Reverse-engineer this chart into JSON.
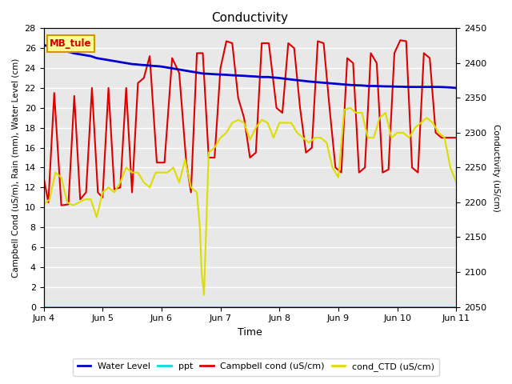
{
  "title": "Conductivity",
  "xlabel": "Time",
  "ylabel_left": "Campbell Cond (uS/m), Rain (mm), Water Level (cm)",
  "ylabel_right": "Conductivity (uS/cm)",
  "ylim_left": [
    0,
    28
  ],
  "ylim_right": [
    2050,
    2450
  ],
  "bg_color": "#e8e8e8",
  "site_label": "MB_tule",
  "x_ticks_labels": [
    "Jun 4",
    "Jun 5",
    "Jun 6",
    "Jun 7",
    "Jun 8",
    "Jun 9",
    "Jun 10",
    "Jun 11"
  ],
  "water_level": {
    "label": "Water Level",
    "color": "#0000cc",
    "lw": 2.0,
    "x": [
      0.0,
      0.05,
      0.1,
      0.15,
      0.2,
      0.25,
      0.3,
      0.35,
      0.4,
      0.45,
      0.5,
      0.55,
      0.6,
      0.65,
      0.7,
      0.75,
      0.8,
      0.85,
      0.9,
      0.95,
      1.0,
      1.05,
      1.1,
      1.15,
      1.2,
      1.25,
      1.3,
      1.35,
      1.4,
      1.45,
      1.5,
      1.55,
      1.6,
      1.65,
      1.7,
      1.75,
      1.8,
      1.85,
      1.9,
      1.95,
      2.0,
      2.1,
      2.2,
      2.3,
      2.4,
      2.5,
      2.6,
      2.7,
      2.8,
      2.9,
      3.0,
      3.1,
      3.2,
      3.3,
      3.4,
      3.5,
      3.6,
      3.7,
      3.8,
      3.9,
      4.0,
      4.1,
      4.2,
      4.3,
      4.4,
      4.5,
      4.6,
      4.7,
      4.8,
      4.9,
      5.0,
      5.1,
      5.2,
      5.3,
      5.4,
      5.5,
      5.6,
      5.7,
      5.8,
      5.9,
      6.0,
      6.1,
      6.2,
      6.3,
      6.4,
      6.5,
      6.6,
      6.7,
      6.8,
      6.9,
      7.0
    ],
    "y": [
      26.3,
      26.25,
      26.2,
      26.1,
      26.0,
      25.9,
      25.8,
      25.7,
      25.65,
      25.6,
      25.5,
      25.45,
      25.4,
      25.35,
      25.3,
      25.25,
      25.2,
      25.1,
      25.0,
      24.95,
      24.9,
      24.85,
      24.8,
      24.75,
      24.7,
      24.65,
      24.6,
      24.55,
      24.5,
      24.45,
      24.4,
      24.38,
      24.35,
      24.32,
      24.3,
      24.28,
      24.25,
      24.22,
      24.2,
      24.18,
      24.15,
      24.05,
      23.95,
      23.85,
      23.75,
      23.65,
      23.55,
      23.45,
      23.42,
      23.38,
      23.35,
      23.32,
      23.28,
      23.25,
      23.22,
      23.18,
      23.15,
      23.1,
      23.1,
      23.05,
      23.0,
      22.92,
      22.85,
      22.78,
      22.72,
      22.65,
      22.6,
      22.55,
      22.5,
      22.45,
      22.4,
      22.35,
      22.3,
      22.27,
      22.25,
      22.2,
      22.2,
      22.18,
      22.16,
      22.15,
      22.13,
      22.12,
      22.1,
      22.1,
      22.1,
      22.1,
      22.1,
      22.1,
      22.08,
      22.05,
      22.0
    ]
  },
  "ppt": {
    "label": "ppt",
    "color": "#00dddd",
    "lw": 1.5,
    "x": [
      0.0,
      7.0
    ],
    "y": [
      0.0,
      0.0
    ]
  },
  "campbell": {
    "label": "Campbell cond (uS/cm)",
    "color": "#dd0000",
    "lw": 1.5,
    "x": [
      0.0,
      0.08,
      0.18,
      0.3,
      0.42,
      0.52,
      0.62,
      0.72,
      0.82,
      0.92,
      1.0,
      1.1,
      1.2,
      1.3,
      1.4,
      1.5,
      1.6,
      1.7,
      1.8,
      1.92,
      2.05,
      2.18,
      2.3,
      2.42,
      2.5,
      2.6,
      2.7,
      2.8,
      2.9,
      3.0,
      3.1,
      3.2,
      3.3,
      3.4,
      3.5,
      3.6,
      3.7,
      3.82,
      3.95,
      4.05,
      4.15,
      4.25,
      4.35,
      4.45,
      4.55,
      4.65,
      4.75,
      4.85,
      4.95,
      5.05,
      5.15,
      5.25,
      5.35,
      5.45,
      5.55,
      5.65,
      5.75,
      5.85,
      5.95,
      6.05,
      6.15,
      6.25,
      6.35,
      6.45,
      6.55,
      6.65,
      6.75,
      6.85,
      7.0
    ],
    "y": [
      13.0,
      10.5,
      21.5,
      10.2,
      10.3,
      21.2,
      10.8,
      11.5,
      22.0,
      11.5,
      11.0,
      22.0,
      11.8,
      12.0,
      22.0,
      11.5,
      22.5,
      23.0,
      25.2,
      14.5,
      14.5,
      25.0,
      23.5,
      14.5,
      11.5,
      25.5,
      25.5,
      15.0,
      15.0,
      24.0,
      26.7,
      26.5,
      21.0,
      19.0,
      15.0,
      15.5,
      26.5,
      26.5,
      20.0,
      19.5,
      26.5,
      26.0,
      20.0,
      15.5,
      16.0,
      26.7,
      26.5,
      20.0,
      14.0,
      13.5,
      25.0,
      24.5,
      13.5,
      14.0,
      25.5,
      24.5,
      13.5,
      13.8,
      25.5,
      26.8,
      26.7,
      14.0,
      13.5,
      25.5,
      25.0,
      17.5,
      17.0,
      17.0,
      17.0
    ]
  },
  "cond_ctd": {
    "label": "cond_CTD (uS/cm)",
    "color": "#dddd00",
    "lw": 1.5,
    "x": [
      0.0,
      0.1,
      0.2,
      0.3,
      0.4,
      0.5,
      0.6,
      0.7,
      0.8,
      0.9,
      1.0,
      1.1,
      1.2,
      1.3,
      1.4,
      1.5,
      1.6,
      1.7,
      1.8,
      1.9,
      2.0,
      2.1,
      2.2,
      2.3,
      2.4,
      2.5,
      2.6,
      2.65,
      2.68,
      2.72,
      2.8,
      2.9,
      3.0,
      3.1,
      3.2,
      3.3,
      3.4,
      3.5,
      3.6,
      3.7,
      3.8,
      3.9,
      4.0,
      4.1,
      4.2,
      4.3,
      4.4,
      4.5,
      4.6,
      4.7,
      4.8,
      4.9,
      5.0,
      5.1,
      5.2,
      5.3,
      5.4,
      5.5,
      5.6,
      5.7,
      5.8,
      5.9,
      6.0,
      6.1,
      6.2,
      6.3,
      6.4,
      6.5,
      6.6,
      6.7,
      6.8,
      6.9,
      7.0
    ],
    "y": [
      10.3,
      10.8,
      13.5,
      13.0,
      10.5,
      10.2,
      10.5,
      10.8,
      10.8,
      9.0,
      11.5,
      12.0,
      11.5,
      12.5,
      14.0,
      13.5,
      13.5,
      12.5,
      12.0,
      13.5,
      13.5,
      13.5,
      14.0,
      12.5,
      14.8,
      12.0,
      11.5,
      8.0,
      3.5,
      1.2,
      15.5,
      16.0,
      17.0,
      17.5,
      18.5,
      18.8,
      18.5,
      16.8,
      18.0,
      18.8,
      18.5,
      17.0,
      18.5,
      18.5,
      18.5,
      17.5,
      17.0,
      16.5,
      17.0,
      17.0,
      16.5,
      14.0,
      13.0,
      19.8,
      20.0,
      19.5,
      19.5,
      17.0,
      17.0,
      19.0,
      19.5,
      17.0,
      17.5,
      17.5,
      17.0,
      18.0,
      18.5,
      19.0,
      18.5,
      17.5,
      17.0,
      14.0,
      12.5
    ]
  }
}
